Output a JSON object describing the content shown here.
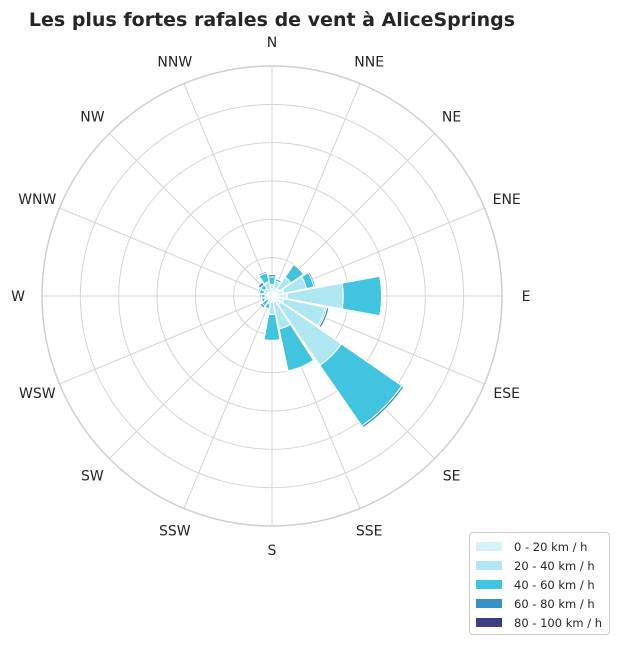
{
  "chart_data": {
    "type": "windrose",
    "title": "Les plus fortes rafales de vent à AliceSprings",
    "directions": [
      "N",
      "NNE",
      "NE",
      "ENE",
      "E",
      "ESE",
      "SE",
      "SSE",
      "S",
      "SSW",
      "SW",
      "WSW",
      "W",
      "WNW",
      "NW",
      "NNW"
    ],
    "radial_grid": [
      0.5,
      1.0,
      1.5,
      2.0,
      2.5,
      3.0
    ],
    "radial_max": 3.0,
    "grid": true,
    "legend_position": "bottom-right",
    "series": [
      {
        "name": "0 - 20 km / h",
        "color": "#d6f1f8",
        "values": [
          0.1,
          0.1,
          0.12,
          0.16,
          0.2,
          0.16,
          0.14,
          0.08,
          0.06,
          0.05,
          0.04,
          0.05,
          0.06,
          0.06,
          0.06,
          0.06
        ]
      },
      {
        "name": "20 - 40 km / h",
        "color": "#aee6f2",
        "values": [
          0.05,
          0.1,
          0.18,
          0.3,
          0.73,
          0.55,
          0.96,
          0.36,
          0.18,
          0.06,
          0.03,
          0.04,
          0.03,
          0.05,
          0.06,
          0.13
        ]
      },
      {
        "name": "40 - 60 km / h",
        "color": "#41c4e0",
        "values": [
          0.1,
          0.03,
          0.2,
          0.1,
          0.5,
          0.02,
          0.96,
          0.56,
          0.34,
          0.06,
          0.09,
          0.02,
          0.05,
          0.06,
          0.06,
          0.12
        ]
      },
      {
        "name": "60 - 80 km / h",
        "color": "#3691c8",
        "values": [
          0.03,
          0.0,
          0.0,
          0.02,
          0.01,
          0.03,
          0.03,
          0.01,
          0.01,
          0.0,
          0.03,
          0.03,
          0.02,
          0.02,
          0.04,
          0.02
        ]
      },
      {
        "name": "80 - 100 km / h",
        "color": "#3c3f86",
        "values": [
          0.0,
          0.0,
          0.0,
          0.0,
          0.0,
          0.0,
          0.0,
          0.0,
          0.0,
          0.0,
          0.0,
          0.0,
          0.0,
          0.0,
          0.0,
          0.0
        ]
      }
    ]
  }
}
